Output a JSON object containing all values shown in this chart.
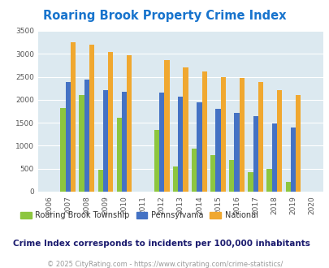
{
  "title": "Roaring Brook Property Crime Index",
  "years": [
    2006,
    2007,
    2008,
    2009,
    2010,
    2011,
    2012,
    2013,
    2014,
    2015,
    2016,
    2017,
    2018,
    2019,
    2020
  ],
  "roaring_brook": [
    0,
    1820,
    2100,
    480,
    1600,
    0,
    1350,
    540,
    930,
    790,
    690,
    430,
    500,
    220,
    0
  ],
  "pennsylvania": [
    0,
    2380,
    2430,
    2210,
    2180,
    0,
    2160,
    2070,
    1950,
    1800,
    1720,
    1640,
    1490,
    1400,
    0
  ],
  "national": [
    0,
    3260,
    3200,
    3040,
    2960,
    0,
    2870,
    2710,
    2610,
    2500,
    2480,
    2390,
    2210,
    2110,
    0
  ],
  "color_roaring": "#8dc63f",
  "color_pa": "#4472c4",
  "color_national": "#f0a830",
  "bg_color": "#dce9f0",
  "title_color": "#1874cd",
  "ylim": [
    0,
    3500
  ],
  "legend_label_roaring": "Roaring Brook Township",
  "legend_label_pa": "Pennsylvania",
  "legend_label_national": "National",
  "footnote1": "Crime Index corresponds to incidents per 100,000 inhabitants",
  "footnote2": "© 2025 CityRating.com - https://www.cityrating.com/crime-statistics/",
  "bar_width": 0.27
}
